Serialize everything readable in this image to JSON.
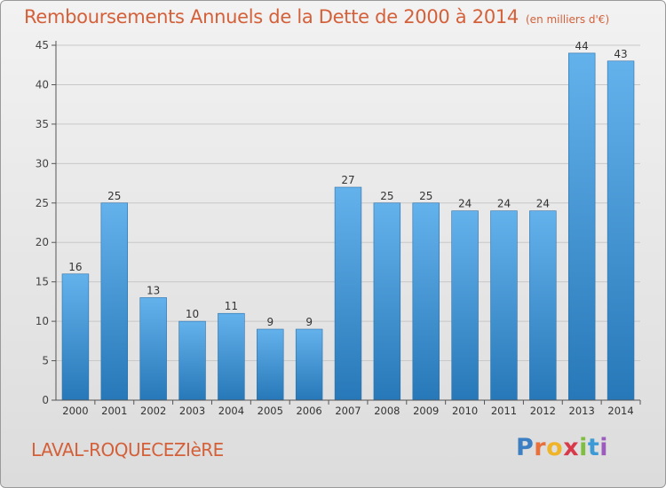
{
  "header": {
    "title": "Remboursements Annuels de la Dette de 2000 à 2014",
    "unit": "(en milliers d'€)"
  },
  "footer": {
    "commune": "LAVAL-ROQUECEZIèRE",
    "logo_letters": [
      {
        "ch": "P",
        "color": "#3c7fc2"
      },
      {
        "ch": "r",
        "color": "#e8703a"
      },
      {
        "ch": "o",
        "color": "#f0b429"
      },
      {
        "ch": "x",
        "color": "#d83a4a"
      },
      {
        "ch": "i",
        "color": "#7fbf3f"
      },
      {
        "ch": "t",
        "color": "#3c9ad6"
      },
      {
        "ch": "i",
        "color": "#9c5cbf"
      }
    ]
  },
  "colors": {
    "bar_light": "#64b2ec",
    "bar_dark": "#2778b8",
    "text_accent": "#d4603a"
  },
  "chart_data": {
    "type": "bar",
    "title": "Remboursements Annuels de la Dette de 2000 à 2014",
    "xlabel": "",
    "ylabel": "",
    "categories": [
      "2000",
      "2001",
      "2002",
      "2003",
      "2004",
      "2005",
      "2006",
      "2007",
      "2008",
      "2009",
      "2010",
      "2011",
      "2012",
      "2013",
      "2014"
    ],
    "values": [
      16,
      25,
      13,
      10,
      11,
      9,
      9,
      27,
      25,
      25,
      24,
      24,
      24,
      44,
      43
    ],
    "ylim": [
      0,
      45
    ],
    "yticks": [
      0,
      5,
      10,
      15,
      20,
      25,
      30,
      35,
      40,
      45
    ],
    "grid": "horizontal",
    "data_labels": true
  }
}
